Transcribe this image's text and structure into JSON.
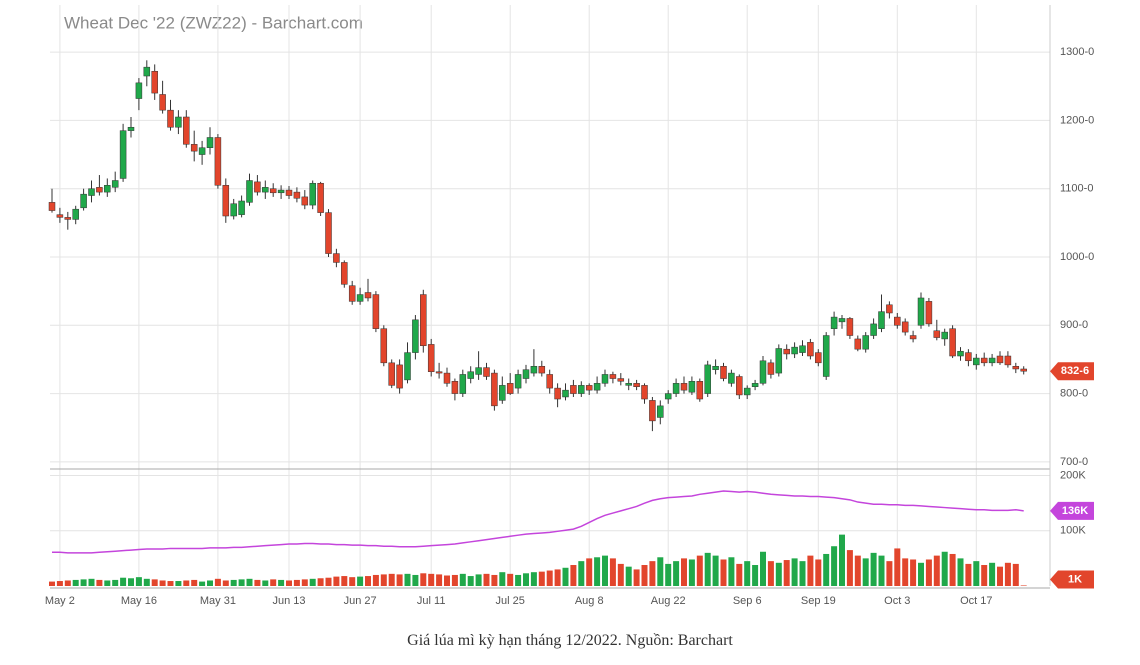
{
  "caption": "Giá lúa mì kỳ hạn tháng 12/2022. Nguồn: Barchart",
  "chart_data": {
    "type": "candlestick",
    "title": "Wheat Dec '22 (ZWZ22) - Barchart.com",
    "categories": [
      null,
      "May 2",
      null,
      null,
      null,
      null,
      null,
      null,
      null,
      null,
      null,
      "May 16",
      null,
      null,
      null,
      null,
      null,
      null,
      null,
      null,
      null,
      "May 31",
      null,
      null,
      null,
      null,
      null,
      null,
      null,
      null,
      "Jun 13",
      null,
      null,
      null,
      null,
      null,
      null,
      null,
      null,
      "Jun 27",
      null,
      null,
      null,
      null,
      null,
      null,
      null,
      null,
      "Jul 11",
      null,
      null,
      null,
      null,
      null,
      null,
      null,
      null,
      null,
      "Jul 25",
      null,
      null,
      null,
      null,
      null,
      null,
      null,
      null,
      null,
      "Aug 8",
      null,
      null,
      null,
      null,
      null,
      null,
      null,
      null,
      null,
      "Aug 22",
      null,
      null,
      null,
      null,
      null,
      null,
      null,
      null,
      null,
      "Sep 6",
      null,
      null,
      null,
      null,
      null,
      null,
      null,
      null,
      "Sep 19",
      null,
      null,
      null,
      null,
      null,
      null,
      null,
      null,
      null,
      "Oct 3",
      null,
      null,
      null,
      null,
      null,
      null,
      null,
      null,
      null,
      "Oct 17",
      null,
      null,
      null,
      null,
      null,
      null
    ],
    "ohlc": [
      [
        1080,
        1100,
        1065,
        1068
      ],
      [
        1062,
        1072,
        1050,
        1058
      ],
      [
        1058,
        1066,
        1040,
        1055
      ],
      [
        1055,
        1075,
        1048,
        1070
      ],
      [
        1072,
        1100,
        1068,
        1092
      ],
      [
        1090,
        1112,
        1080,
        1100
      ],
      [
        1102,
        1120,
        1090,
        1095
      ],
      [
        1095,
        1115,
        1088,
        1105
      ],
      [
        1102,
        1125,
        1095,
        1112
      ],
      [
        1115,
        1195,
        1110,
        1185
      ],
      [
        1185,
        1205,
        1175,
        1190
      ],
      [
        1232,
        1262,
        1215,
        1255
      ],
      [
        1265,
        1288,
        1250,
        1278
      ],
      [
        1272,
        1282,
        1230,
        1240
      ],
      [
        1238,
        1258,
        1210,
        1215
      ],
      [
        1215,
        1230,
        1185,
        1190
      ],
      [
        1190,
        1215,
        1180,
        1205
      ],
      [
        1205,
        1215,
        1160,
        1165
      ],
      [
        1165,
        1185,
        1140,
        1155
      ],
      [
        1150,
        1170,
        1135,
        1160
      ],
      [
        1160,
        1190,
        1150,
        1175
      ],
      [
        1175,
        1180,
        1100,
        1105
      ],
      [
        1105,
        1115,
        1050,
        1060
      ],
      [
        1060,
        1085,
        1055,
        1078
      ],
      [
        1062,
        1090,
        1058,
        1082
      ],
      [
        1080,
        1122,
        1075,
        1112
      ],
      [
        1110,
        1120,
        1090,
        1095
      ],
      [
        1095,
        1112,
        1085,
        1102
      ],
      [
        1100,
        1108,
        1088,
        1094
      ],
      [
        1094,
        1105,
        1085,
        1098
      ],
      [
        1098,
        1104,
        1085,
        1090
      ],
      [
        1095,
        1102,
        1080,
        1086
      ],
      [
        1088,
        1098,
        1070,
        1076
      ],
      [
        1076,
        1112,
        1070,
        1108
      ],
      [
        1108,
        1110,
        1060,
        1065
      ],
      [
        1065,
        1070,
        1000,
        1005
      ],
      [
        1005,
        1012,
        985,
        992
      ],
      [
        992,
        995,
        955,
        960
      ],
      [
        958,
        965,
        930,
        935
      ],
      [
        935,
        955,
        930,
        945
      ],
      [
        948,
        968,
        935,
        940
      ],
      [
        945,
        950,
        890,
        895
      ],
      [
        895,
        900,
        840,
        845
      ],
      [
        845,
        850,
        808,
        812
      ],
      [
        842,
        850,
        800,
        808
      ],
      [
        820,
        875,
        815,
        860
      ],
      [
        860,
        915,
        850,
        908
      ],
      [
        945,
        952,
        860,
        870
      ],
      [
        872,
        880,
        825,
        832
      ],
      [
        832,
        845,
        822,
        830
      ],
      [
        830,
        838,
        810,
        815
      ],
      [
        818,
        822,
        790,
        800
      ],
      [
        800,
        835,
        795,
        828
      ],
      [
        822,
        840,
        815,
        832
      ],
      [
        828,
        862,
        820,
        838
      ],
      [
        838,
        845,
        820,
        825
      ],
      [
        830,
        835,
        775,
        782
      ],
      [
        790,
        825,
        785,
        812
      ],
      [
        815,
        830,
        798,
        800
      ],
      [
        808,
        835,
        800,
        828
      ],
      [
        822,
        842,
        815,
        835
      ],
      [
        830,
        865,
        825,
        840
      ],
      [
        840,
        848,
        825,
        830
      ],
      [
        828,
        835,
        800,
        808
      ],
      [
        808,
        815,
        780,
        792
      ],
      [
        795,
        815,
        790,
        805
      ],
      [
        812,
        820,
        795,
        800
      ],
      [
        800,
        818,
        795,
        812
      ],
      [
        812,
        815,
        798,
        805
      ],
      [
        805,
        825,
        800,
        815
      ],
      [
        815,
        835,
        810,
        828
      ],
      [
        828,
        832,
        815,
        822
      ],
      [
        822,
        830,
        812,
        818
      ],
      [
        812,
        822,
        805,
        815
      ],
      [
        815,
        820,
        805,
        810
      ],
      [
        812,
        815,
        785,
        792
      ],
      [
        790,
        795,
        745,
        760
      ],
      [
        765,
        790,
        755,
        782
      ],
      [
        792,
        805,
        785,
        800
      ],
      [
        800,
        822,
        795,
        815
      ],
      [
        815,
        825,
        800,
        805
      ],
      [
        802,
        825,
        798,
        818
      ],
      [
        818,
        822,
        788,
        792
      ],
      [
        800,
        848,
        795,
        842
      ],
      [
        835,
        850,
        828,
        840
      ],
      [
        840,
        845,
        818,
        822
      ],
      [
        815,
        835,
        810,
        830
      ],
      [
        825,
        828,
        792,
        798
      ],
      [
        798,
        812,
        792,
        808
      ],
      [
        810,
        820,
        805,
        815
      ],
      [
        815,
        855,
        812,
        848
      ],
      [
        845,
        850,
        822,
        828
      ],
      [
        830,
        872,
        825,
        866
      ],
      [
        865,
        872,
        850,
        858
      ],
      [
        858,
        875,
        852,
        868
      ],
      [
        860,
        878,
        855,
        870
      ],
      [
        875,
        880,
        850,
        855
      ],
      [
        860,
        865,
        840,
        845
      ],
      [
        825,
        890,
        820,
        885
      ],
      [
        895,
        920,
        885,
        912
      ],
      [
        905,
        915,
        895,
        910
      ],
      [
        910,
        912,
        880,
        885
      ],
      [
        880,
        885,
        862,
        865
      ],
      [
        865,
        890,
        860,
        885
      ],
      [
        885,
        910,
        880,
        902
      ],
      [
        895,
        945,
        890,
        920
      ],
      [
        930,
        935,
        910,
        918
      ],
      [
        912,
        918,
        895,
        900
      ],
      [
        905,
        910,
        885,
        890
      ],
      [
        885,
        892,
        875,
        880
      ],
      [
        900,
        948,
        895,
        940
      ],
      [
        935,
        940,
        898,
        902
      ],
      [
        892,
        908,
        878,
        882
      ],
      [
        880,
        895,
        870,
        890
      ],
      [
        895,
        900,
        852,
        855
      ],
      [
        855,
        868,
        848,
        862
      ],
      [
        860,
        865,
        840,
        848
      ],
      [
        842,
        858,
        835,
        852
      ],
      [
        852,
        860,
        840,
        845
      ],
      [
        845,
        858,
        840,
        852
      ],
      [
        855,
        862,
        842,
        845
      ],
      [
        855,
        862,
        838,
        842
      ],
      [
        840,
        845,
        830,
        836
      ],
      [
        836,
        840,
        828,
        832.75
      ]
    ],
    "up_color": "#20a84a",
    "down_color": "#e2452c",
    "ylim": [
      691,
      1369
    ],
    "yticks": [
      {
        "value": 700,
        "label": "700-0"
      },
      {
        "value": 800,
        "label": "800-0"
      },
      {
        "value": 900,
        "label": "900-0"
      },
      {
        "value": 1000,
        "label": "1000-0"
      },
      {
        "value": 1100,
        "label": "1100-0"
      },
      {
        "value": 1200,
        "label": "1200-0"
      },
      {
        "value": 1300,
        "label": "1300-0"
      }
    ],
    "last_price": {
      "value": 832.75,
      "label": "832-6",
      "color": "#e2452c"
    },
    "grid": true,
    "volume": [
      8000,
      9000,
      10000,
      11000,
      12000,
      13000,
      11000,
      10000,
      11000,
      15000,
      14000,
      16000,
      13000,
      12000,
      10000,
      9000,
      9000,
      10000,
      11000,
      8000,
      10000,
      13000,
      10000,
      11000,
      12000,
      13000,
      11000,
      10000,
      12000,
      11000,
      10000,
      11000,
      12000,
      13000,
      14000,
      15000,
      17000,
      18000,
      16000,
      17000,
      18000,
      20000,
      21000,
      22000,
      21000,
      22000,
      20000,
      23000,
      22000,
      21000,
      19000,
      20000,
      22000,
      18000,
      21000,
      22000,
      20000,
      25000,
      22000,
      20000,
      23000,
      25000,
      26000,
      28000,
      30000,
      33000,
      38000,
      45000,
      50000,
      52000,
      55000,
      50000,
      40000,
      35000,
      30000,
      38000,
      45000,
      52000,
      40000,
      45000,
      50000,
      48000,
      55000,
      60000,
      55000,
      48000,
      52000,
      40000,
      45000,
      38000,
      62000,
      45000,
      42000,
      47000,
      50000,
      45000,
      55000,
      48000,
      58000,
      72000,
      93000,
      65000,
      55000,
      50000,
      60000,
      55000,
      45000,
      68000,
      50000,
      48000,
      42000,
      48000,
      55000,
      62000,
      58000,
      50000,
      40000,
      45000,
      38000,
      42000,
      35000,
      42000,
      40000,
      1000
    ],
    "open_interest": {
      "color": "#c445dc",
      "values": [
        61000,
        61000,
        60000,
        60000,
        60000,
        60000,
        61000,
        62000,
        63000,
        64000,
        65000,
        66000,
        67000,
        67000,
        67000,
        68000,
        68000,
        68000,
        68000,
        68000,
        69000,
        69000,
        69000,
        70000,
        70000,
        71000,
        72000,
        73000,
        74000,
        75000,
        76000,
        76000,
        77000,
        77000,
        76000,
        76000,
        75000,
        75000,
        74000,
        74000,
        73000,
        73000,
        72000,
        72000,
        71000,
        71000,
        71000,
        72000,
        73000,
        74000,
        75000,
        76000,
        78000,
        80000,
        82000,
        84000,
        86000,
        88000,
        90000,
        92000,
        94000,
        95000,
        96000,
        97000,
        99000,
        101000,
        103000,
        108000,
        115000,
        122000,
        128000,
        132000,
        136000,
        140000,
        144000,
        150000,
        155000,
        158000,
        160000,
        161000,
        162000,
        163000,
        166000,
        168000,
        170000,
        172000,
        171000,
        170000,
        171000,
        170000,
        168000,
        166000,
        165000,
        164000,
        163000,
        163000,
        162000,
        162000,
        161000,
        160000,
        158000,
        156000,
        152000,
        150000,
        148000,
        148000,
        147000,
        147000,
        146000,
        146000,
        145000,
        144000,
        143000,
        142000,
        141000,
        140000,
        139000,
        138000,
        138000,
        137000,
        137000,
        137000,
        138000,
        136000
      ]
    },
    "volume_ylim": [
      0,
      210000
    ],
    "volume_yticks": [
      {
        "value": 100000,
        "label": "100K"
      },
      {
        "value": 200000,
        "label": "200K"
      }
    ],
    "open_interest_tag": {
      "value": 136000,
      "label": "136K"
    },
    "volume_tag": {
      "value": 1000,
      "label": "1K",
      "color": "#e2452c"
    }
  }
}
